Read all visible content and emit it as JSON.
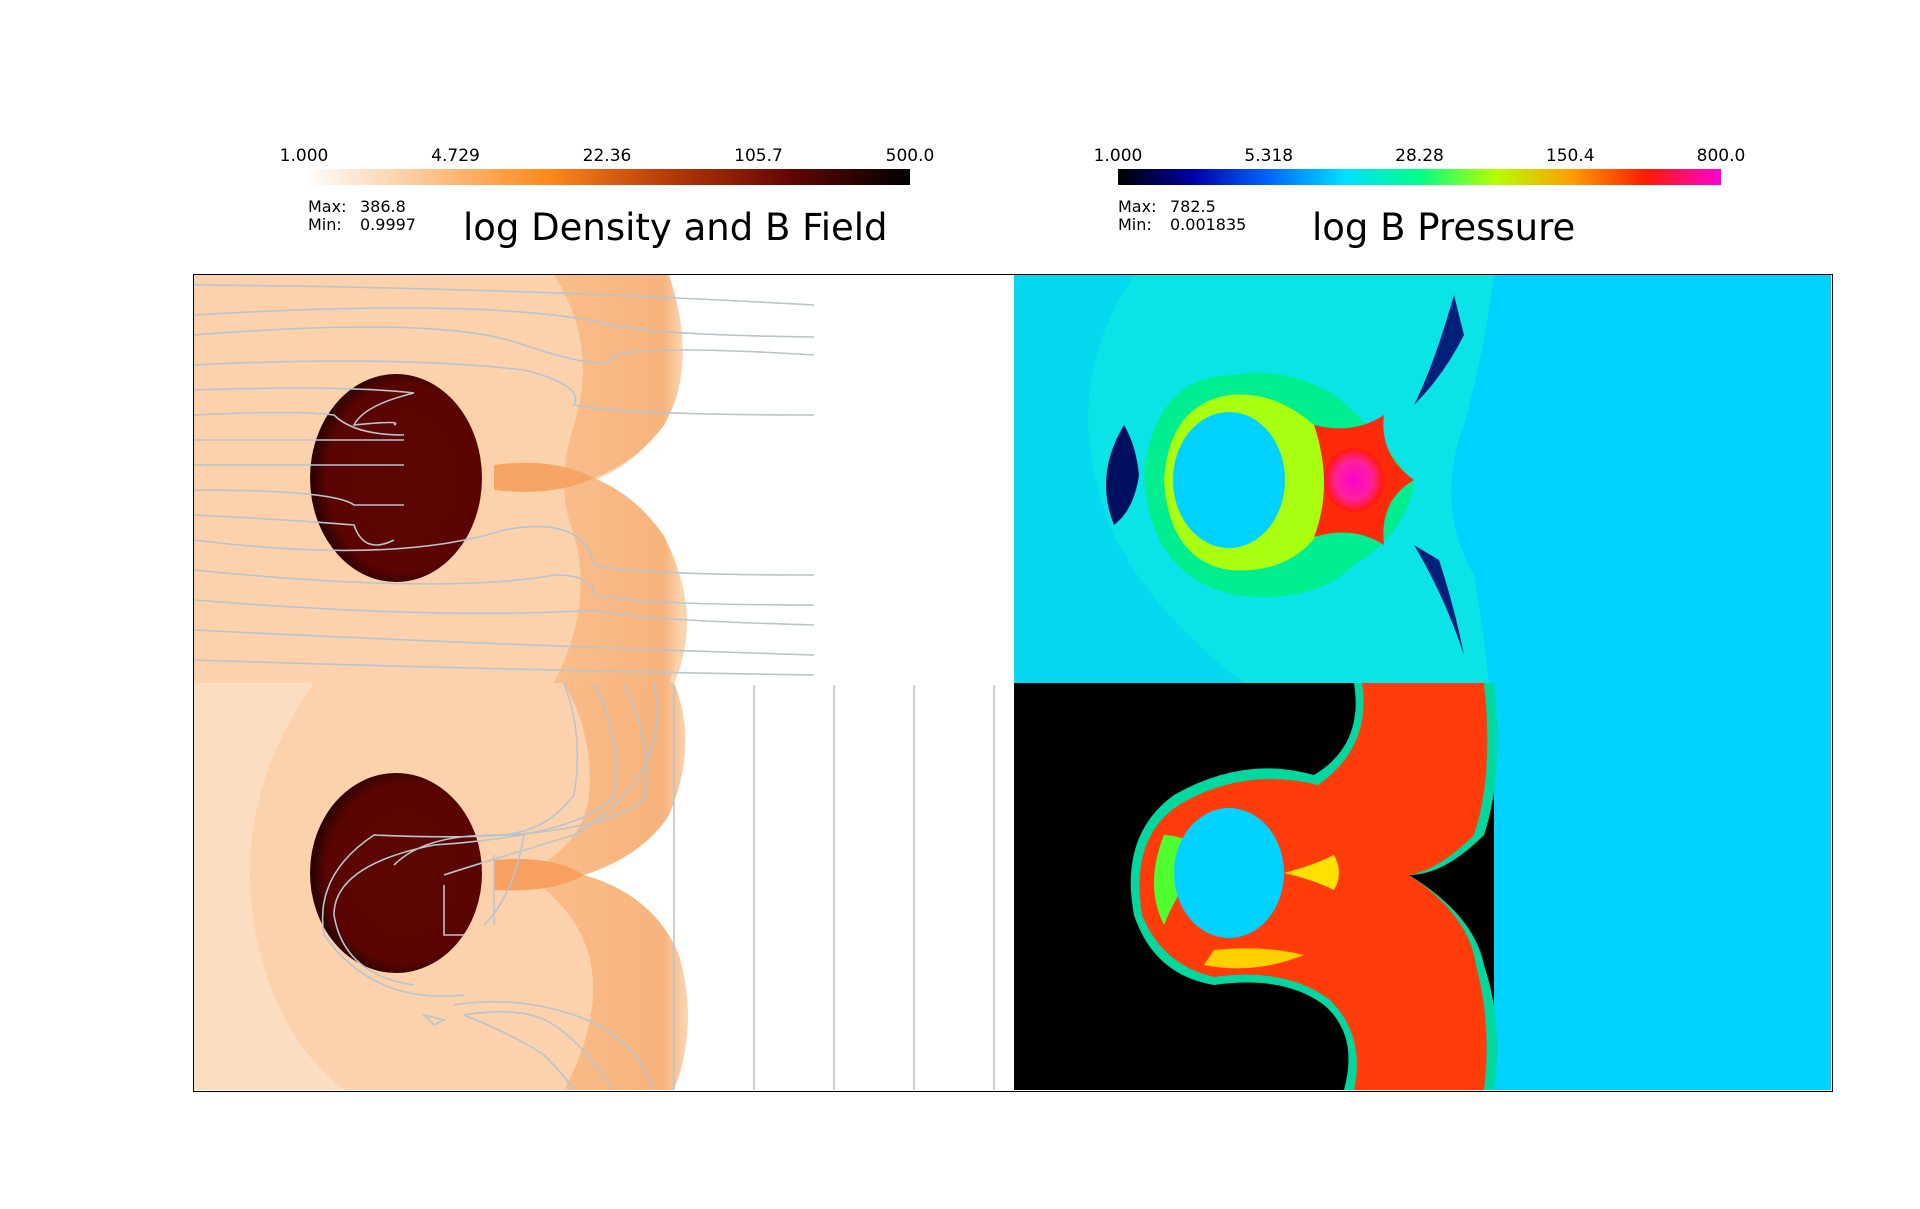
{
  "density_panel": {
    "title": "log Density and B Field",
    "colorbar": {
      "ticks": [
        "1.000",
        "4.729",
        "22.36",
        "105.7",
        "500.0"
      ],
      "colors": [
        "#ffffff",
        "#fcc693",
        "#ff8a1c",
        "#b83a06",
        "#640703",
        "#000000"
      ]
    },
    "stats": {
      "max_label": "Max:",
      "max_value": "386.8",
      "min_label": "Min:",
      "min_value": "0.9997"
    }
  },
  "pressure_panel": {
    "title": "log B Pressure",
    "colorbar": {
      "ticks": [
        "1.000",
        "5.318",
        "28.28",
        "150.4",
        "800.0"
      ],
      "colors": [
        "#000000",
        "#0000a8",
        "#0066ff",
        "#00e0ff",
        "#00ff88",
        "#b4ff00",
        "#ffa000",
        "#ff1a00",
        "#ff00d2"
      ]
    },
    "stats": {
      "max_label": "Max:",
      "max_value": "782.5",
      "min_label": "Min:",
      "min_value": "0.001835"
    }
  },
  "colors": {
    "density_background": "#fcd2ad",
    "density_shell": "#f8b885",
    "density_clump": "#5c0602",
    "field_lines": "#b9c4cc",
    "pressure_background": "#00d2ff",
    "pressure_shell": "#ff3c0a",
    "pressure_black": "#000000"
  }
}
